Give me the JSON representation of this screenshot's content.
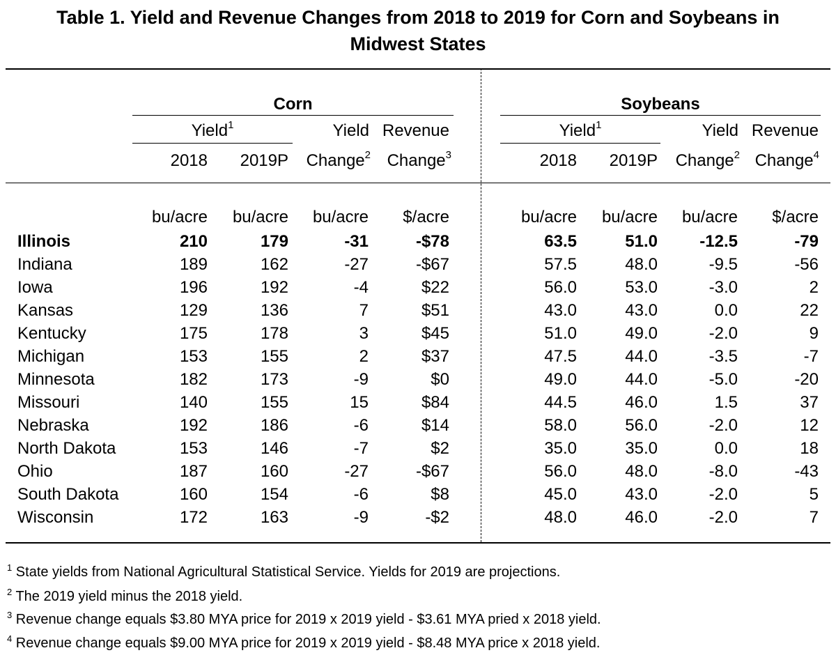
{
  "title": {
    "line1": "Table 1. Yield and Revenue Changes from 2018 to 2019 for Corn and Soybeans in",
    "line2": "Midwest States"
  },
  "groups": {
    "corn": "Corn",
    "soybeans": "Soybeans"
  },
  "headers": {
    "yield": "Yield",
    "yield_sup": "1",
    "y2018": "2018",
    "y2019p": "2019P",
    "yield_top": "Yield",
    "yield_change": "Change",
    "yield_change_sup": "2",
    "revenue_top": "Revenue",
    "revenue_change": "Change",
    "corn_revenue_sup": "3",
    "soy_revenue_sup": "4"
  },
  "units": {
    "corn": [
      "bu/acre",
      "bu/acre",
      "bu/acre",
      "$/acre"
    ],
    "soybeans": [
      "bu/acre",
      "bu/acre",
      "bu/acre",
      "$/acre"
    ]
  },
  "rows": [
    {
      "state": "Illinois",
      "bold": true,
      "corn": [
        "210",
        "179",
        "-31",
        "-$78"
      ],
      "soy": [
        "63.5",
        "51.0",
        "-12.5",
        "-79"
      ]
    },
    {
      "state": "Indiana",
      "corn": [
        "189",
        "162",
        "-27",
        "-$67"
      ],
      "soy": [
        "57.5",
        "48.0",
        "-9.5",
        "-56"
      ]
    },
    {
      "state": "Iowa",
      "corn": [
        "196",
        "192",
        "-4",
        "$22"
      ],
      "soy": [
        "56.0",
        "53.0",
        "-3.0",
        "2"
      ]
    },
    {
      "state": "Kansas",
      "corn": [
        "129",
        "136",
        "7",
        "$51"
      ],
      "soy": [
        "43.0",
        "43.0",
        "0.0",
        "22"
      ]
    },
    {
      "state": "Kentucky",
      "corn": [
        "175",
        "178",
        "3",
        "$45"
      ],
      "soy": [
        "51.0",
        "49.0",
        "-2.0",
        "9"
      ]
    },
    {
      "state": "Michigan",
      "corn": [
        "153",
        "155",
        "2",
        "$37"
      ],
      "soy": [
        "47.5",
        "44.0",
        "-3.5",
        "-7"
      ]
    },
    {
      "state": "Minnesota",
      "corn": [
        "182",
        "173",
        "-9",
        "$0"
      ],
      "soy": [
        "49.0",
        "44.0",
        "-5.0",
        "-20"
      ]
    },
    {
      "state": "Missouri",
      "corn": [
        "140",
        "155",
        "15",
        "$84"
      ],
      "soy": [
        "44.5",
        "46.0",
        "1.5",
        "37"
      ]
    },
    {
      "state": "Nebraska",
      "corn": [
        "192",
        "186",
        "-6",
        "$14"
      ],
      "soy": [
        "58.0",
        "56.0",
        "-2.0",
        "12"
      ]
    },
    {
      "state": "North Dakota",
      "corn": [
        "153",
        "146",
        "-7",
        "$2"
      ],
      "soy": [
        "35.0",
        "35.0",
        "0.0",
        "18"
      ]
    },
    {
      "state": "Ohio",
      "corn": [
        "187",
        "160",
        "-27",
        "-$67"
      ],
      "soy": [
        "56.0",
        "48.0",
        "-8.0",
        "-43"
      ]
    },
    {
      "state": "South Dakota",
      "corn": [
        "160",
        "154",
        "-6",
        "$8"
      ],
      "soy": [
        "45.0",
        "43.0",
        "-2.0",
        "5"
      ]
    },
    {
      "state": "Wisconsin",
      "corn": [
        "172",
        "163",
        "-9",
        "-$2"
      ],
      "soy": [
        "48.0",
        "46.0",
        "-2.0",
        "7"
      ]
    }
  ],
  "footnotes": [
    {
      "num": "1",
      "text": "State yields from National Agricultural Statistical Service.  Yields for 2019 are projections."
    },
    {
      "num": "2",
      "text": "The 2019 yield minus the 2018 yield."
    },
    {
      "num": "3",
      "text": "Revenue change equals $3.80 MYA price for 2019 x 2019 yield - $3.61 MYA pried x 2018 yield."
    },
    {
      "num": "4",
      "text": "Revenue change equals $9.00 MYA price for 2019 x 2019 yield - $8.48 MYA price x 2018 yield."
    }
  ]
}
